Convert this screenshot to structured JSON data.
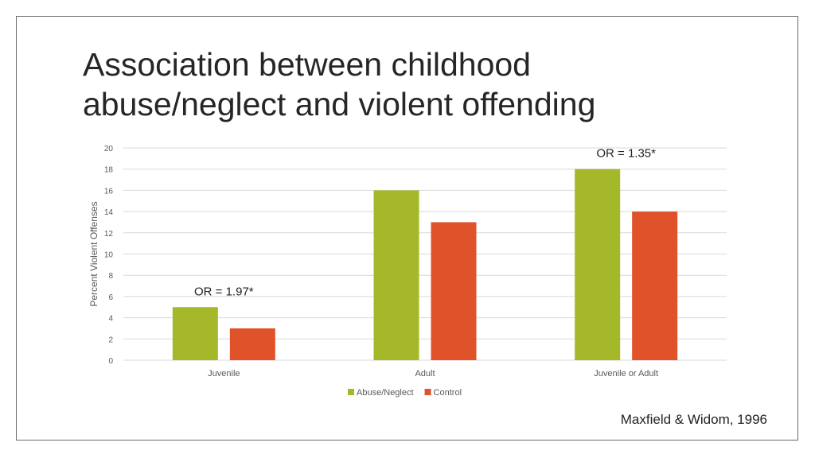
{
  "slide": {
    "title_line1": "Association between childhood",
    "title_line2": "abuse/neglect and violent offending",
    "citation": "Maxfield & Widom, 1996"
  },
  "colors": {
    "abuse_neglect": "#a5b829",
    "control": "#e0522a",
    "grid": "#d9d9d9",
    "axis_text": "#595959"
  },
  "chart_data": {
    "type": "bar",
    "title": "",
    "xlabel": "",
    "ylabel": "Percent Violent Offenses",
    "ylim": [
      0,
      20
    ],
    "yticks": [
      0,
      2,
      4,
      6,
      8,
      10,
      12,
      14,
      16,
      18,
      20
    ],
    "categories": [
      "Juvenile",
      "Adult",
      "Juvenile or Adult"
    ],
    "series": [
      {
        "name": "Abuse/Neglect",
        "values": [
          5,
          16,
          18
        ]
      },
      {
        "name": "Control",
        "values": [
          3,
          13,
          14
        ]
      }
    ],
    "legend": "bottom-center",
    "annotations": [
      {
        "text": "OR = 1.97*",
        "category": "Juvenile"
      },
      {
        "text": "OR = 1.35*",
        "category": "Juvenile or Adult"
      }
    ]
  }
}
